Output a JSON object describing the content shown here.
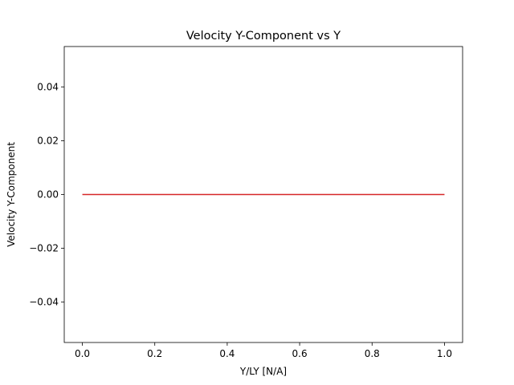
{
  "chart_data": {
    "type": "line",
    "title": "Velocity Y-Component vs Y",
    "xlabel": "Y/LY [N/A]",
    "ylabel": "Velocity Y-Component",
    "xlim": [
      -0.05,
      1.05
    ],
    "ylim": [
      -0.055,
      0.055
    ],
    "x_ticks": [
      0.0,
      0.2,
      0.4,
      0.6,
      0.8,
      1.0
    ],
    "x_tick_labels": [
      "0.0",
      "0.2",
      "0.4",
      "0.6",
      "0.8",
      "1.0"
    ],
    "y_ticks": [
      -0.04,
      -0.02,
      0.0,
      0.02,
      0.04
    ],
    "y_tick_labels": [
      "−0.04",
      "−0.02",
      "0.00",
      "0.02",
      "0.04"
    ],
    "grid": false,
    "series": [
      {
        "color": "#d62728",
        "x": [
          0.0,
          1.0
        ],
        "y": [
          0.0,
          0.0
        ]
      }
    ]
  }
}
